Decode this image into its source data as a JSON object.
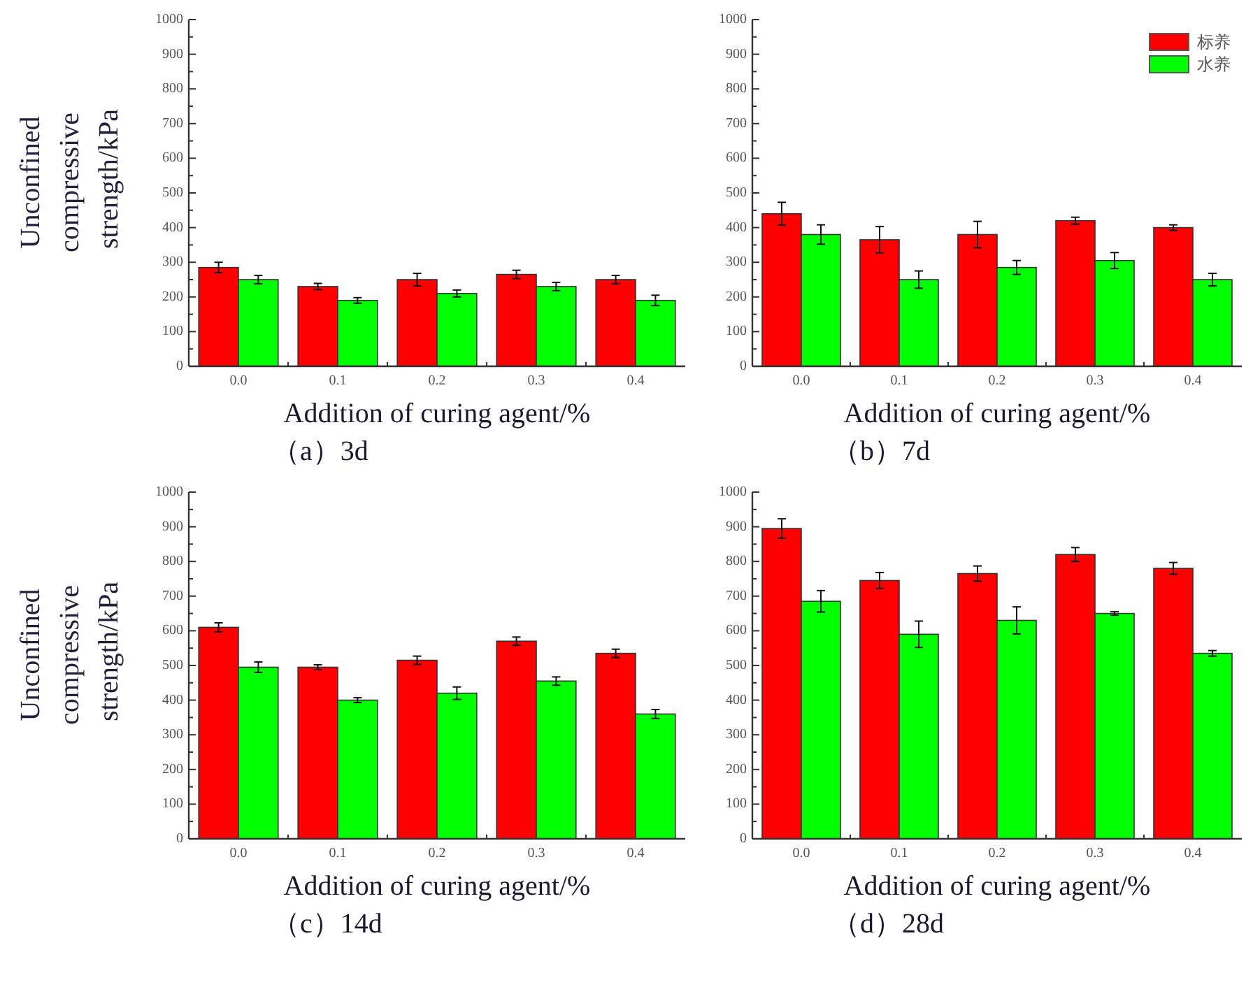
{
  "chart_data": [
    {
      "type": "bar",
      "title": "（a）3d",
      "xlabel": "Addition of curing agent/%",
      "ylabel": "Unconfined compressive strength/kPa",
      "categories": [
        "0.0",
        "0.1",
        "0.2",
        "0.3",
        "0.4"
      ],
      "series": [
        {
          "color": "#ff0000",
          "values": [
            285,
            230,
            250,
            265,
            250
          ],
          "errors": [
            15,
            9,
            18,
            12,
            12
          ]
        },
        {
          "color": "#00ff00",
          "values": [
            250,
            190,
            210,
            230,
            190
          ],
          "errors": [
            12,
            8,
            10,
            12,
            15
          ]
        }
      ],
      "ylim": [
        0,
        1000
      ],
      "yticks": [
        0,
        {
          "value": 50,
          "label": null
        },
        100,
        {
          "value": 150,
          "label": null
        },
        200,
        {
          "value": 250,
          "label": null
        },
        300,
        {
          "value": 350,
          "label": null
        },
        400,
        {
          "value": 450,
          "label": null
        },
        500,
        {
          "value": 550,
          "label": null
        },
        600,
        {
          "value": 650,
          "label": null
        },
        700,
        {
          "value": 750,
          "label": null
        },
        800,
        {
          "value": 850,
          "label": null
        },
        900,
        {
          "value": 950,
          "label": null
        },
        1000
      ]
    },
    {
      "type": "bar",
      "title": "（b）7d",
      "xlabel": "Addition of curing agent/%",
      "categories": [
        "0.0",
        "0.1",
        "0.2",
        "0.3",
        "0.4"
      ],
      "series": [
        {
          "name": "标养",
          "color": "#ff0000",
          "values": [
            440,
            365,
            380,
            420,
            400
          ],
          "errors": [
            33,
            38,
            38,
            10,
            8
          ]
        },
        {
          "name": "水养",
          "color": "#00ff00",
          "values": [
            380,
            250,
            285,
            305,
            250
          ],
          "errors": [
            28,
            25,
            20,
            23,
            18
          ]
        }
      ],
      "ylim": [
        0,
        1000
      ],
      "yticks": [
        0,
        {
          "value": 50,
          "label": null
        },
        100,
        {
          "value": 150,
          "label": null
        },
        200,
        {
          "value": 250,
          "label": null
        },
        300,
        {
          "value": 350,
          "label": null
        },
        400,
        {
          "value": 450,
          "label": null
        },
        500,
        {
          "value": 550,
          "label": null
        },
        600,
        {
          "value": 650,
          "label": null
        },
        700,
        {
          "value": 750,
          "label": null
        },
        800,
        {
          "value": 850,
          "label": null
        },
        900,
        {
          "value": 950,
          "label": null
        },
        1000
      ],
      "legend": "top right"
    },
    {
      "type": "bar",
      "title": "（c）14d",
      "xlabel": "Addition of curing agent/%",
      "ylabel": "Unconfined compressive strength/kPa",
      "categories": [
        "0.0",
        "0.1",
        "0.2",
        "0.3",
        "0.4"
      ],
      "series": [
        {
          "color": "#ff0000",
          "values": [
            610,
            495,
            515,
            570,
            535
          ],
          "errors": [
            13,
            7,
            12,
            12,
            12
          ]
        },
        {
          "color": "#00ff00",
          "values": [
            495,
            400,
            420,
            455,
            360
          ],
          "errors": [
            15,
            7,
            18,
            12,
            13
          ]
        }
      ],
      "ylim": [
        0,
        1000
      ],
      "yticks": [
        0,
        {
          "value": 50,
          "label": null
        },
        100,
        {
          "value": 150,
          "label": null
        },
        200,
        {
          "value": 250,
          "label": null
        },
        300,
        {
          "value": 350,
          "label": null
        },
        400,
        {
          "value": 450,
          "label": null
        },
        500,
        {
          "value": 550,
          "label": null
        },
        600,
        {
          "value": 650,
          "label": null
        },
        700,
        {
          "value": 750,
          "label": null
        },
        800,
        {
          "value": 850,
          "label": null
        },
        900,
        {
          "value": 950,
          "label": null
        },
        1000
      ]
    },
    {
      "type": "bar",
      "title": "（d）28d",
      "xlabel": "Addition of curing agent/%",
      "categories": [
        "0.0",
        "0.1",
        "0.2",
        "0.3",
        "0.4"
      ],
      "series": [
        {
          "color": "#ff0000",
          "values": [
            895,
            745,
            765,
            820,
            780
          ],
          "errors": [
            28,
            23,
            22,
            20,
            17
          ]
        },
        {
          "color": "#00ff00",
          "values": [
            685,
            590,
            630,
            650,
            535
          ],
          "errors": [
            31,
            38,
            39,
            5,
            8
          ]
        }
      ],
      "ylim": [
        0,
        1000
      ],
      "yticks": [
        0,
        {
          "value": 50,
          "label": null
        },
        100,
        {
          "value": 150,
          "label": null
        },
        200,
        {
          "value": 250,
          "label": null
        },
        300,
        {
          "value": 350,
          "label": null
        },
        400,
        {
          "value": 450,
          "label": null
        },
        500,
        {
          "value": 550,
          "label": null
        },
        600,
        {
          "value": 650,
          "label": null
        },
        700,
        {
          "value": 750,
          "label": null
        },
        800,
        {
          "value": 850,
          "label": null
        },
        900,
        {
          "value": 950,
          "label": null
        },
        1000
      ]
    }
  ]
}
